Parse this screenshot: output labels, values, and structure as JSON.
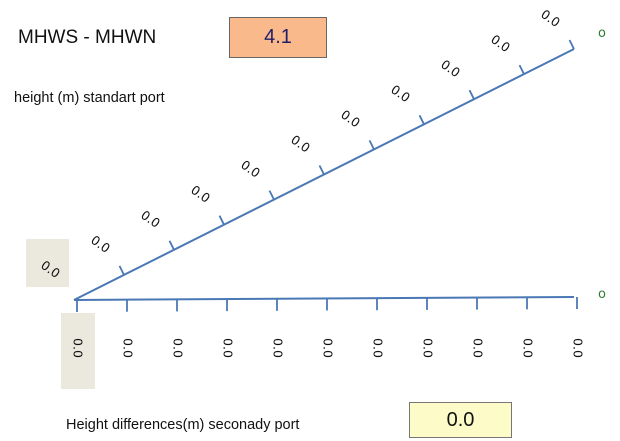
{
  "header": {
    "title": "MHWS - MHWN",
    "range_value": "4.1"
  },
  "labels": {
    "upper_axis": "height (m) standart port",
    "lower_axis": "Height differences(m) seconady port"
  },
  "result": {
    "value": "0.0"
  },
  "upper_scale": {
    "tick_labels": [
      "0.0",
      "0.0",
      "0.0",
      "0.0",
      "0.0",
      "0.0",
      "0.0",
      "0.0",
      "0.0",
      "0.0",
      "0.0"
    ],
    "end_marker": "o"
  },
  "lower_scale": {
    "tick_labels": [
      "0.0",
      "0.0",
      "0.0",
      "0.0",
      "0.0",
      "0.0",
      "0.0",
      "0.0",
      "0.0",
      "0.0",
      "0.0"
    ],
    "end_marker": "o"
  },
  "colors": {
    "line": "#4a78b5",
    "value_box": "#f9b98a",
    "result_box": "#fdfcc8",
    "highlight": "#ebe8de",
    "end_marker": "#2e7d32"
  }
}
